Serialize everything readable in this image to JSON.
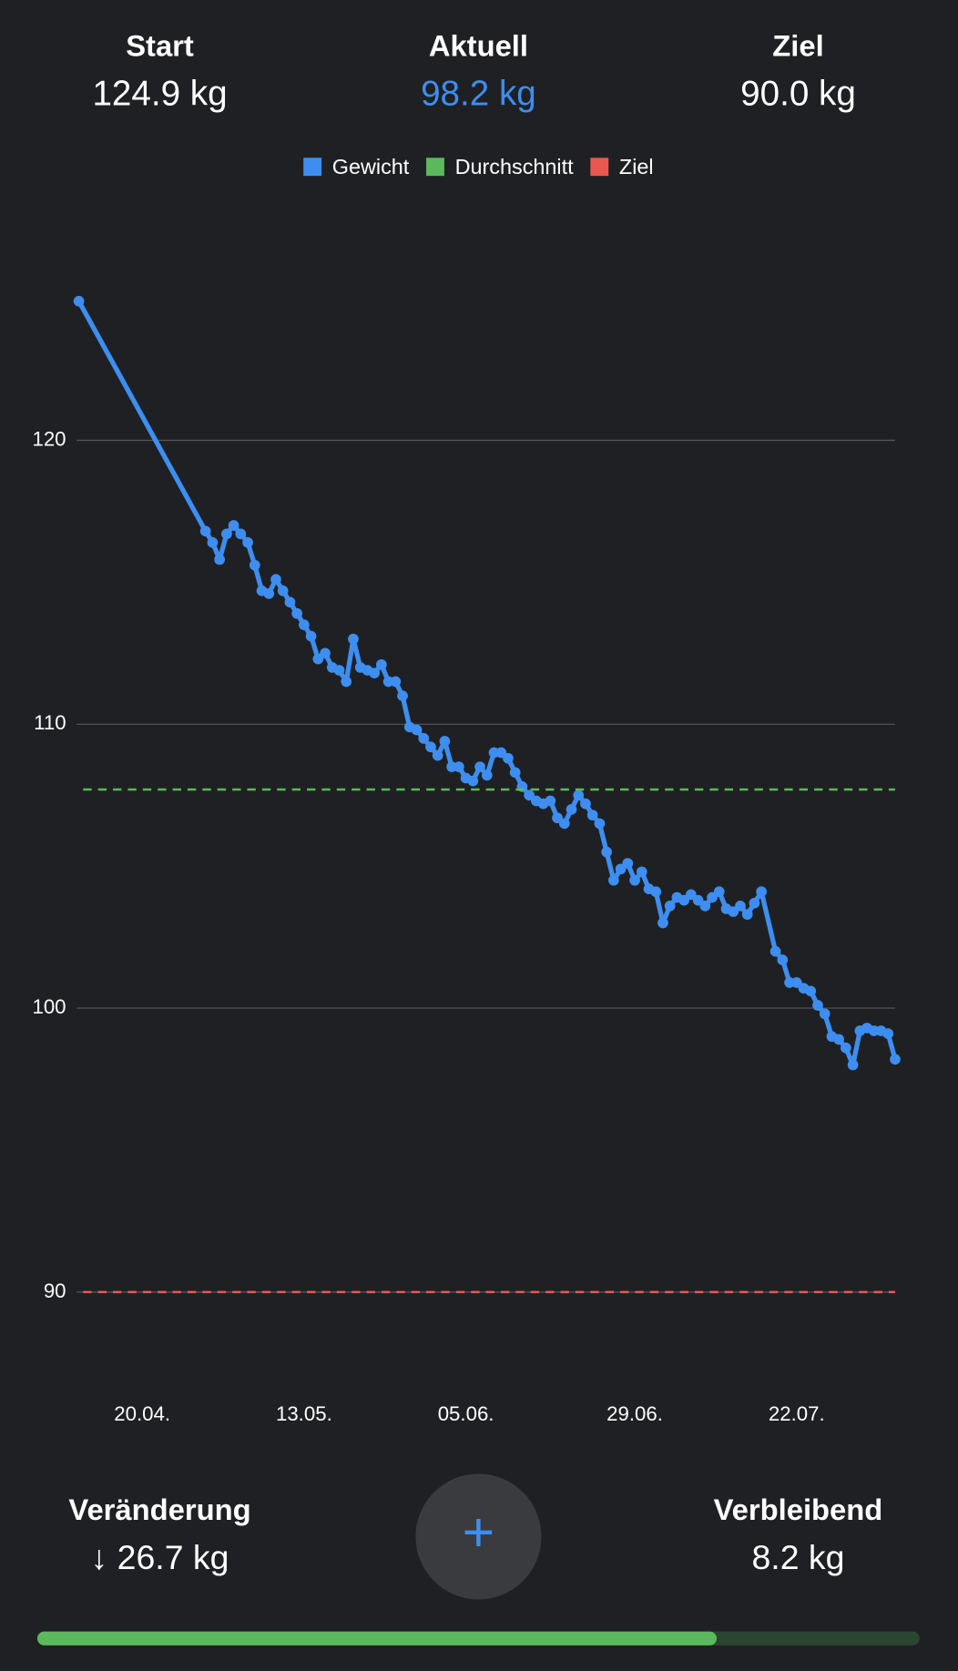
{
  "header": {
    "stats": [
      {
        "label": "Start",
        "value": "124.9 kg"
      },
      {
        "label": "Aktuell",
        "value": "98.2 kg"
      },
      {
        "label": "Ziel",
        "value": "90.0 kg"
      }
    ]
  },
  "chart_data": {
    "type": "line",
    "x": [
      "11.04.",
      "29.04.",
      "30.04.",
      "01.05.",
      "02.05.",
      "03.05.",
      "04.05.",
      "05.05.",
      "06.05.",
      "07.05.",
      "08.05.",
      "09.05.",
      "10.05.",
      "11.05.",
      "12.05.",
      "13.05.",
      "14.05.",
      "15.05.",
      "16.05.",
      "17.05.",
      "18.05.",
      "19.05.",
      "20.05.",
      "21.05.",
      "22.05.",
      "23.05.",
      "24.05.",
      "25.05.",
      "26.05.",
      "27.05.",
      "28.05.",
      "29.05.",
      "30.05.",
      "31.05.",
      "01.06.",
      "02.06.",
      "03.06.",
      "04.06.",
      "05.06.",
      "06.06.",
      "07.06.",
      "08.06.",
      "09.06.",
      "10.06.",
      "11.06.",
      "12.06.",
      "13.06.",
      "14.06.",
      "15.06.",
      "16.06.",
      "17.06.",
      "18.06.",
      "19.06.",
      "20.06.",
      "21.06.",
      "22.06.",
      "23.06.",
      "24.06.",
      "25.06.",
      "26.06.",
      "27.06.",
      "28.06.",
      "29.06.",
      "30.06.",
      "01.07.",
      "02.07.",
      "03.07.",
      "04.07.",
      "05.07.",
      "06.07.",
      "07.07.",
      "08.07.",
      "09.07.",
      "10.07.",
      "11.07.",
      "12.07.",
      "13.07.",
      "14.07.",
      "15.07.",
      "16.07.",
      "17.07.",
      "19.07.",
      "20.07.",
      "21.07.",
      "22.07.",
      "23.07.",
      "24.07.",
      "25.07.",
      "26.07.",
      "27.07.",
      "28.07.",
      "29.07.",
      "30.07.",
      "31.07.",
      "01.08.",
      "02.08.",
      "03.08.",
      "04.08.",
      "05.08."
    ],
    "series": [
      {
        "name": "Gewicht",
        "color": "#3d8ef0",
        "values": [
          124.9,
          116.8,
          116.4,
          115.8,
          116.7,
          117.0,
          116.7,
          116.4,
          115.6,
          114.7,
          114.6,
          115.1,
          114.7,
          114.3,
          113.9,
          113.5,
          113.1,
          112.3,
          112.5,
          112.0,
          111.9,
          111.5,
          113.0,
          112.0,
          111.9,
          111.8,
          112.1,
          111.5,
          111.5,
          111.0,
          109.9,
          109.8,
          109.5,
          109.2,
          108.9,
          109.4,
          108.5,
          108.5,
          108.1,
          108.0,
          108.5,
          108.2,
          109.0,
          109.0,
          108.8,
          108.3,
          107.8,
          107.5,
          107.3,
          107.2,
          107.3,
          106.7,
          106.5,
          107.0,
          107.5,
          107.2,
          106.8,
          106.5,
          105.5,
          104.5,
          104.9,
          105.1,
          104.5,
          104.8,
          104.2,
          104.1,
          103.0,
          103.6,
          103.9,
          103.8,
          104.0,
          103.8,
          103.6,
          103.9,
          104.1,
          103.5,
          103.4,
          103.6,
          103.3,
          103.7,
          104.1,
          102.0,
          101.7,
          100.9,
          100.9,
          100.7,
          100.6,
          100.1,
          99.8,
          99.0,
          98.9,
          98.6,
          98.0,
          99.2,
          99.3,
          99.2,
          99.2,
          99.1,
          98.2
        ]
      },
      {
        "name": "Durchschnitt",
        "color": "#5cb85c",
        "value": 107.7
      },
      {
        "name": "Ziel",
        "color": "#e8584f",
        "value": 90
      }
    ],
    "xlim": [
      "11.04.",
      "05.08."
    ],
    "xticks": [
      "20.04.",
      "13.05.",
      "05.06.",
      "29.06.",
      "22.07."
    ],
    "ylim": [
      87,
      127
    ],
    "yticks": [
      90,
      100,
      110,
      120
    ],
    "grid": true
  },
  "footer": {
    "change_label": "Veränderung",
    "change_value": "↓ 26.7 kg",
    "remaining_label": "Verbleibend",
    "remaining_value": "8.2 kg",
    "add_button": "+",
    "progress": 77
  }
}
